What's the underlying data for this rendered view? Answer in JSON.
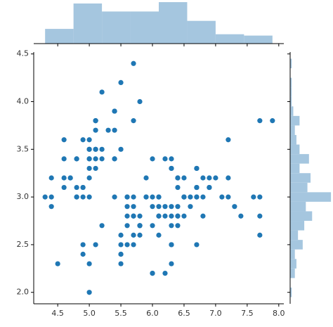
{
  "chart_data": [
    {
      "type": "scatter",
      "color": "#1f77b4",
      "x": [
        5.1,
        4.9,
        4.7,
        4.6,
        5.0,
        5.4,
        4.6,
        5.0,
        4.4,
        4.9,
        5.4,
        4.8,
        4.8,
        4.3,
        5.8,
        5.7,
        5.4,
        5.1,
        5.7,
        5.1,
        5.4,
        5.1,
        4.6,
        5.1,
        4.8,
        5.0,
        5.0,
        5.2,
        5.2,
        4.7,
        4.8,
        5.4,
        5.2,
        5.5,
        4.9,
        5.0,
        5.5,
        4.9,
        4.4,
        5.1,
        5.0,
        4.5,
        4.4,
        5.0,
        5.1,
        4.8,
        5.1,
        4.6,
        5.3,
        5.0,
        7.0,
        6.4,
        6.9,
        5.5,
        6.5,
        5.7,
        6.3,
        4.9,
        6.6,
        5.2,
        5.0,
        5.9,
        6.0,
        6.1,
        5.6,
        6.7,
        5.6,
        5.8,
        6.2,
        5.6,
        5.9,
        6.1,
        6.3,
        6.1,
        6.4,
        6.6,
        6.8,
        6.7,
        6.0,
        5.7,
        5.5,
        5.5,
        5.8,
        6.0,
        5.4,
        6.0,
        6.7,
        6.3,
        5.6,
        5.5,
        5.5,
        6.1,
        5.8,
        5.0,
        5.6,
        5.7,
        5.7,
        6.2,
        5.1,
        5.7,
        6.3,
        5.8,
        7.1,
        6.3,
        6.5,
        7.6,
        4.9,
        7.3,
        6.7,
        7.2,
        6.5,
        6.4,
        6.8,
        5.7,
        5.8,
        6.4,
        6.5,
        7.7,
        7.7,
        6.0,
        6.9,
        5.6,
        7.7,
        6.3,
        6.7,
        7.2,
        6.2,
        6.1,
        6.4,
        7.2,
        7.4,
        7.9,
        6.4,
        6.3,
        6.1,
        7.7,
        6.3,
        6.4,
        6.0,
        6.9,
        6.7,
        6.9,
        5.8,
        6.8,
        6.7,
        6.7,
        6.3,
        6.5,
        6.2,
        5.9
      ],
      "y": [
        3.5,
        3.0,
        3.2,
        3.1,
        3.6,
        3.9,
        3.4,
        3.4,
        2.9,
        3.1,
        3.7,
        3.4,
        3.0,
        3.0,
        4.0,
        4.4,
        3.9,
        3.5,
        3.8,
        3.8,
        3.4,
        3.7,
        3.6,
        3.3,
        3.4,
        3.0,
        3.4,
        3.5,
        3.4,
        3.2,
        3.1,
        3.4,
        4.1,
        4.2,
        3.1,
        3.2,
        3.5,
        3.6,
        3.0,
        3.4,
        3.5,
        2.3,
        3.2,
        3.5,
        3.8,
        3.0,
        3.8,
        3.2,
        3.7,
        3.3,
        3.2,
        3.2,
        3.1,
        2.3,
        2.8,
        2.8,
        3.3,
        2.4,
        2.9,
        2.7,
        2.0,
        3.0,
        2.2,
        2.9,
        2.9,
        3.1,
        3.0,
        2.7,
        2.2,
        2.5,
        3.2,
        2.8,
        2.5,
        2.8,
        2.9,
        3.0,
        2.8,
        3.0,
        2.9,
        2.6,
        2.4,
        2.4,
        2.7,
        2.7,
        3.0,
        3.4,
        3.1,
        2.3,
        3.0,
        2.5,
        2.6,
        3.0,
        2.6,
        2.3,
        2.7,
        3.0,
        2.9,
        2.9,
        2.5,
        2.8,
        3.3,
        2.7,
        3.0,
        2.9,
        3.0,
        3.0,
        2.5,
        2.9,
        2.5,
        3.6,
        3.2,
        2.7,
        3.0,
        2.5,
        2.8,
        3.2,
        3.0,
        3.8,
        2.6,
        2.2,
        3.2,
        2.8,
        2.8,
        2.7,
        3.3,
        3.2,
        2.8,
        3.0,
        2.8,
        3.0,
        2.8,
        3.8,
        2.8,
        2.8,
        2.6,
        3.0,
        3.4,
        3.1,
        3.0,
        3.1,
        3.1,
        3.1,
        2.7,
        3.2,
        3.3,
        3.0,
        2.5,
        3.0,
        3.4,
        3.0
      ],
      "xlim": [
        4.12,
        8.08
      ],
      "ylim": [
        1.88,
        4.52
      ],
      "xticks": [
        4.5,
        {
          "value": 5.0,
          "label": "5.0"
        },
        5.5,
        {
          "value": 6.0,
          "label": "6.0"
        },
        6.5,
        {
          "value": 7.0,
          "label": "7.0"
        },
        7.5,
        {
          "value": 8.0,
          "label": "8.0"
        }
      ],
      "yticks": [
        {
          "value": 2.0,
          "label": "2.0"
        },
        2.5,
        {
          "value": 3.0,
          "label": "3.0"
        },
        3.5,
        {
          "value": 4.0,
          "label": "4.0"
        },
        4.5
      ]
    },
    {
      "type": "histogram",
      "orientation": "vertical",
      "color": "#a5c6df",
      "bins": [
        4.3,
        4.75,
        5.2,
        5.65,
        6.1,
        6.55,
        7.0,
        7.45,
        7.9
      ],
      "values": [
        11,
        30,
        24,
        24,
        31,
        17,
        7,
        6
      ],
      "ylim": [
        0,
        32.6
      ]
    },
    {
      "type": "histogram",
      "orientation": "horizontal",
      "color": "#a5c6df",
      "bins": [
        1.95,
        2.05,
        2.15,
        2.25,
        2.35,
        2.45,
        2.55,
        2.65,
        2.75,
        2.85,
        2.95,
        3.05,
        3.15,
        3.25,
        3.35,
        3.45,
        3.55,
        3.65,
        3.75,
        3.85,
        3.95,
        4.05,
        4.15,
        4.25,
        4.35,
        4.45
      ],
      "values": [
        1,
        0,
        3,
        4,
        3,
        8,
        5,
        9,
        14,
        10,
        26,
        11,
        13,
        6,
        12,
        6,
        4,
        3,
        6,
        2,
        1,
        1,
        1,
        0,
        1
      ],
      "xlim": [
        0,
        27.3
      ]
    }
  ]
}
